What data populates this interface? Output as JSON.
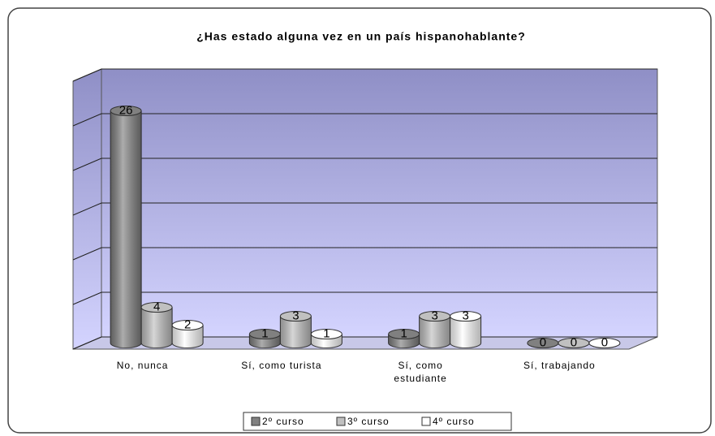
{
  "chart_data": {
    "type": "bar3d",
    "title": "¿Has estado alguna vez en un país hispanohablante?",
    "categories": [
      "No, nunca",
      "Sí, como turista",
      "Sí, como estudiante",
      "Sí, trabajando"
    ],
    "series": [
      {
        "name": "2º curso",
        "color": "#808080",
        "values": [
          26,
          1,
          1,
          0
        ]
      },
      {
        "name": "3º curso",
        "color": "#c0c0c0",
        "values": [
          4,
          3,
          3,
          0
        ]
      },
      {
        "name": "4º curso",
        "color": "#ffffff",
        "values": [
          2,
          1,
          3,
          0
        ]
      }
    ],
    "ylim": [
      0,
      30
    ],
    "yticks": [
      0,
      5,
      10,
      15,
      20,
      25,
      30
    ],
    "grid": true,
    "legend": "bottom"
  }
}
